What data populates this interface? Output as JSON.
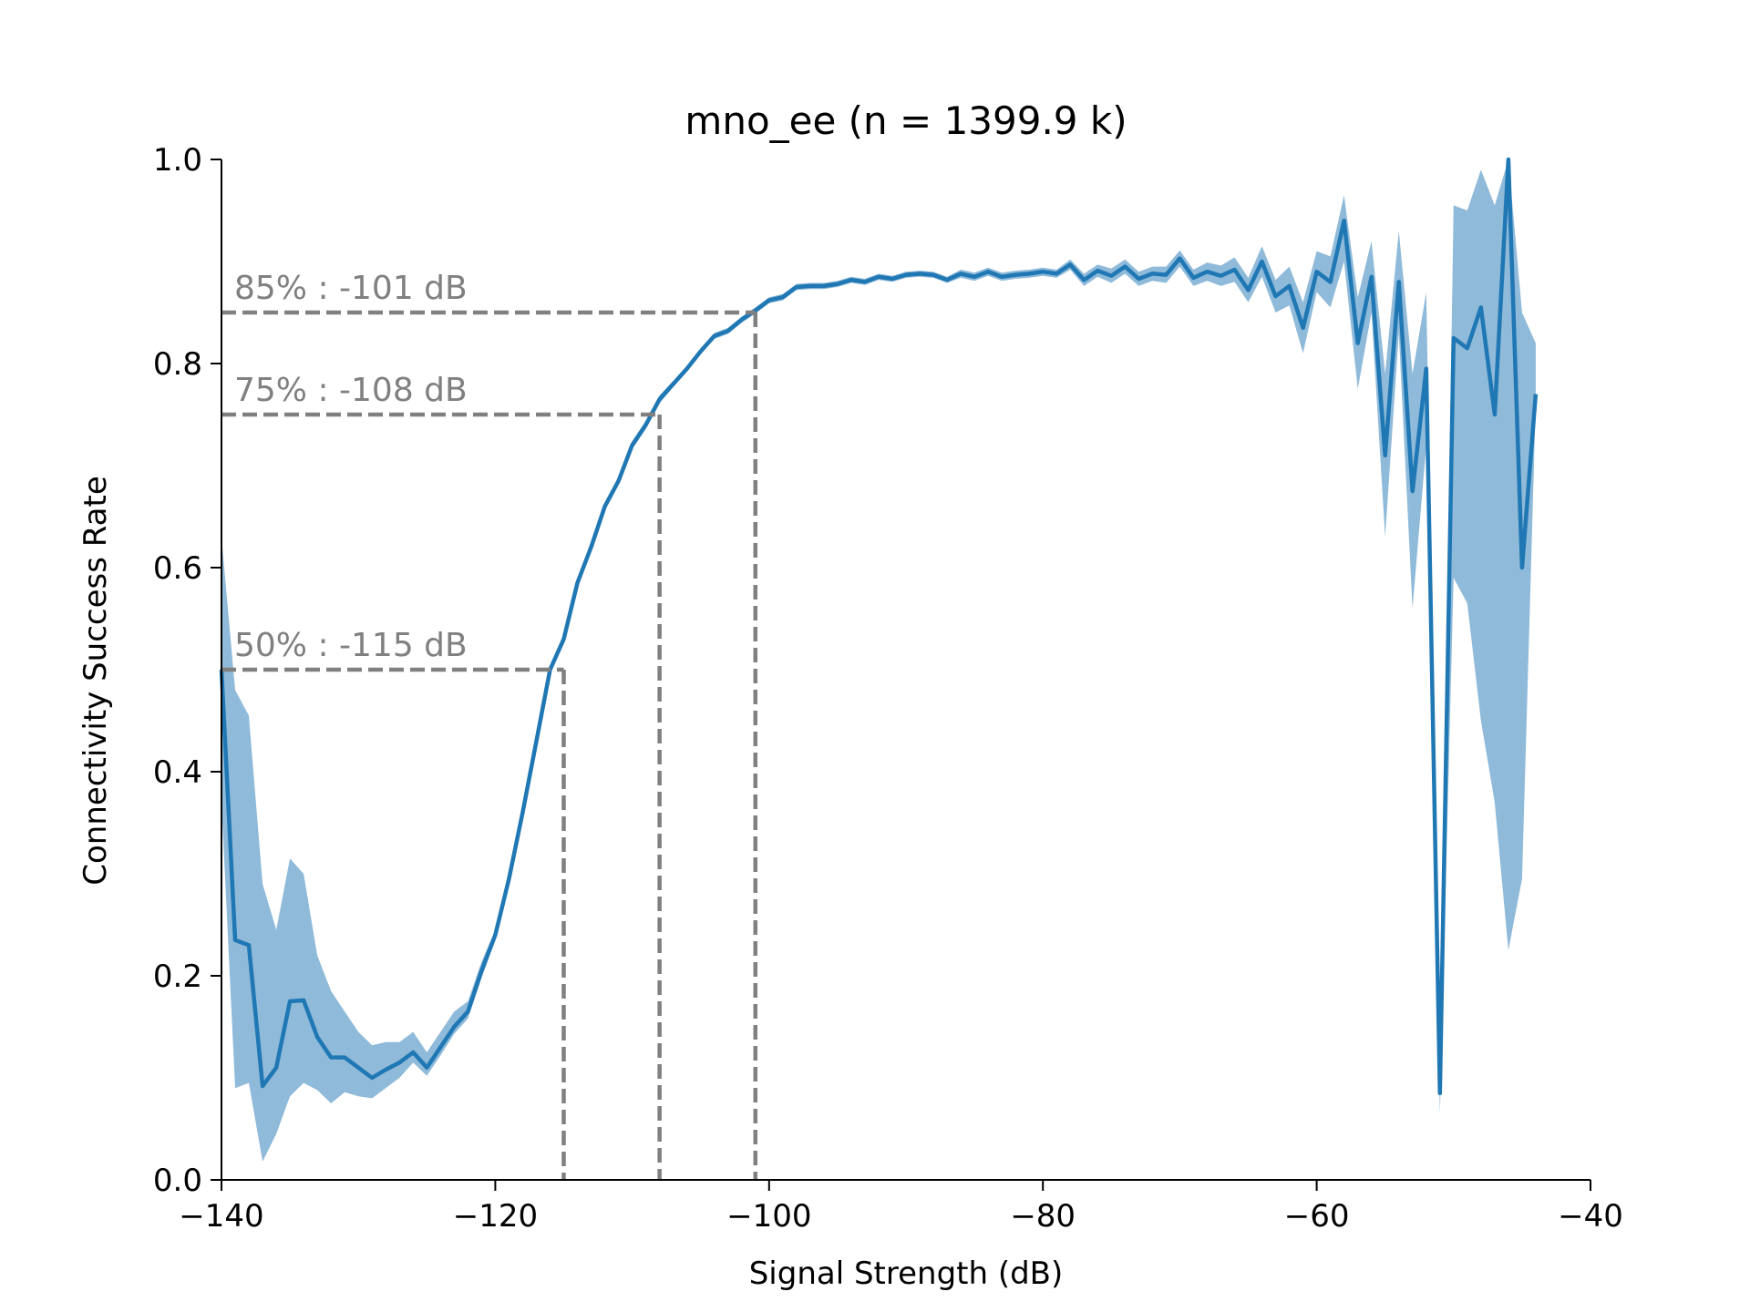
{
  "chart_data": {
    "type": "line",
    "title": "mno_ee (n = 1399.9 k)",
    "xlabel": "Signal Strength (dB)",
    "ylabel": "Connectivity Success Rate",
    "xlim": [
      -140,
      -40
    ],
    "ylim": [
      0.0,
      1.0
    ],
    "x_ticks": [
      -140,
      -120,
      -100,
      -80,
      -60,
      -40
    ],
    "x_tick_labels": [
      "−140",
      "−120",
      "−100",
      "−80",
      "−60",
      "−40"
    ],
    "y_ticks": [
      0.0,
      0.2,
      0.4,
      0.6,
      0.8,
      1.0
    ],
    "y_tick_labels": [
      "0.0",
      "0.2",
      "0.4",
      "0.6",
      "0.8",
      "1.0"
    ],
    "grid": false,
    "line_color": "#1f77b4",
    "band_color": "#8fbad9",
    "annotation_color": "#808080",
    "thresholds": [
      {
        "label": "50% : -115 dB",
        "x": -115,
        "y": 0.5
      },
      {
        "label": "75% : -108 dB",
        "x": -108,
        "y": 0.75
      },
      {
        "label": "85% : -101 dB",
        "x": -101,
        "y": 0.85
      }
    ],
    "series": [
      {
        "x": [
          -140,
          -139,
          -138,
          -137,
          -136,
          -135,
          -134,
          -133,
          -132,
          -131,
          -130,
          -129,
          -128,
          -127,
          -126,
          -125,
          -124,
          -123,
          -122,
          -121,
          -120,
          -119,
          -118,
          -117,
          -116,
          -115,
          -114,
          -113,
          -112,
          -111,
          -110,
          -109,
          -108,
          -107,
          -106,
          -105,
          -104,
          -103,
          -102,
          -101,
          -100,
          -99,
          -98,
          -97,
          -96,
          -95,
          -94,
          -93,
          -92,
          -91,
          -90,
          -89,
          -88,
          -87,
          -86,
          -85,
          -84,
          -83,
          -82,
          -81,
          -80,
          -79,
          -78,
          -77,
          -76,
          -75,
          -74,
          -73,
          -72,
          -71,
          -70,
          -69,
          -68,
          -67,
          -66,
          -65,
          -64,
          -63,
          -62,
          -61,
          -60,
          -59,
          -58,
          -57,
          -56,
          -55,
          -54,
          -53,
          -52,
          -51,
          -50,
          -49,
          -48,
          -47,
          -46,
          -45,
          -44
        ],
        "y": [
          0.5,
          0.235,
          0.23,
          0.092,
          0.11,
          0.175,
          0.176,
          0.14,
          0.12,
          0.12,
          0.11,
          0.1,
          0.108,
          0.115,
          0.125,
          0.11,
          0.13,
          0.15,
          0.165,
          0.205,
          0.24,
          0.295,
          0.36,
          0.43,
          0.5,
          0.53,
          0.585,
          0.62,
          0.66,
          0.685,
          0.72,
          0.74,
          0.765,
          0.78,
          0.795,
          0.812,
          0.827,
          0.832,
          0.843,
          0.852,
          0.862,
          0.865,
          0.875,
          0.876,
          0.876,
          0.878,
          0.882,
          0.88,
          0.885,
          0.883,
          0.887,
          0.888,
          0.887,
          0.882,
          0.888,
          0.885,
          0.89,
          0.885,
          0.887,
          0.888,
          0.89,
          0.888,
          0.897,
          0.882,
          0.891,
          0.886,
          0.895,
          0.883,
          0.888,
          0.887,
          0.903,
          0.884,
          0.89,
          0.886,
          0.892,
          0.872,
          0.9,
          0.866,
          0.876,
          0.835,
          0.89,
          0.88,
          0.94,
          0.82,
          0.885,
          0.71,
          0.88,
          0.675,
          0.795,
          0.085,
          0.825,
          0.815,
          0.855,
          0.75,
          1.0,
          0.6,
          0.77
        ],
        "lower": [
          0.37,
          0.09,
          0.095,
          0.018,
          0.045,
          0.082,
          0.095,
          0.088,
          0.075,
          0.086,
          0.082,
          0.08,
          0.09,
          0.1,
          0.115,
          0.102,
          0.122,
          0.143,
          0.158,
          0.198,
          0.235,
          0.29,
          0.356,
          0.426,
          0.496,
          0.526,
          0.581,
          0.616,
          0.656,
          0.681,
          0.716,
          0.736,
          0.761,
          0.777,
          0.792,
          0.809,
          0.824,
          0.829,
          0.84,
          0.849,
          0.859,
          0.862,
          0.872,
          0.873,
          0.873,
          0.875,
          0.879,
          0.877,
          0.882,
          0.88,
          0.884,
          0.885,
          0.884,
          0.879,
          0.884,
          0.881,
          0.886,
          0.881,
          0.883,
          0.884,
          0.886,
          0.884,
          0.892,
          0.876,
          0.885,
          0.879,
          0.888,
          0.876,
          0.881,
          0.879,
          0.895,
          0.876,
          0.881,
          0.876,
          0.88,
          0.86,
          0.885,
          0.85,
          0.857,
          0.81,
          0.87,
          0.855,
          0.9,
          0.775,
          0.85,
          0.63,
          0.83,
          0.56,
          0.72,
          0.065,
          0.59,
          0.565,
          0.45,
          0.37,
          0.225,
          0.295,
          0.76
        ],
        "upper": [
          0.63,
          0.48,
          0.455,
          0.29,
          0.245,
          0.315,
          0.3,
          0.22,
          0.185,
          0.165,
          0.145,
          0.132,
          0.135,
          0.135,
          0.145,
          0.125,
          0.145,
          0.165,
          0.175,
          0.214,
          0.245,
          0.3,
          0.364,
          0.434,
          0.504,
          0.534,
          0.589,
          0.624,
          0.664,
          0.689,
          0.724,
          0.744,
          0.769,
          0.783,
          0.798,
          0.815,
          0.83,
          0.835,
          0.846,
          0.855,
          0.865,
          0.868,
          0.878,
          0.879,
          0.879,
          0.881,
          0.885,
          0.883,
          0.888,
          0.886,
          0.89,
          0.891,
          0.89,
          0.885,
          0.892,
          0.889,
          0.894,
          0.889,
          0.891,
          0.892,
          0.894,
          0.892,
          0.902,
          0.888,
          0.897,
          0.893,
          0.902,
          0.89,
          0.895,
          0.895,
          0.911,
          0.892,
          0.899,
          0.896,
          0.904,
          0.884,
          0.915,
          0.882,
          0.895,
          0.86,
          0.91,
          0.905,
          0.965,
          0.865,
          0.92,
          0.79,
          0.93,
          0.79,
          0.87,
          0.105,
          0.955,
          0.95,
          0.99,
          0.955,
          1.0,
          0.85,
          0.82
        ]
      }
    ]
  }
}
